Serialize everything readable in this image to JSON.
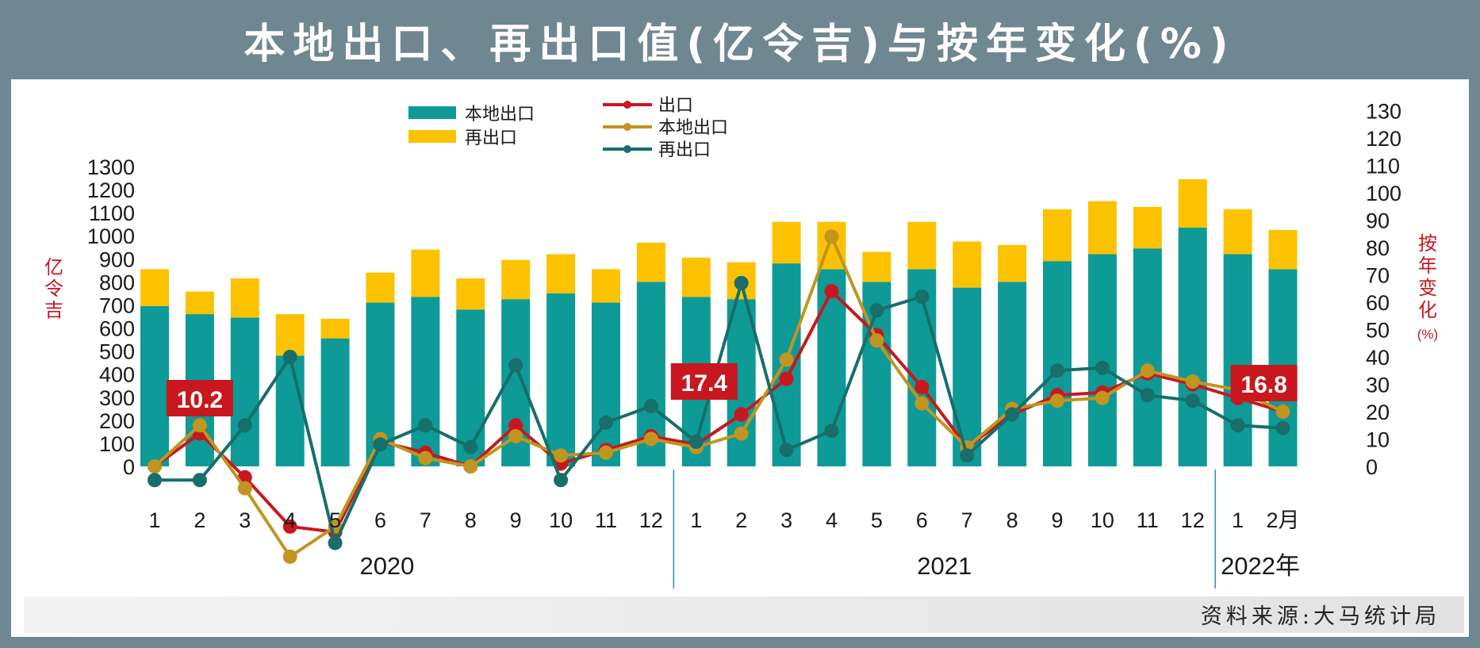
{
  "header": {
    "title": "本地出口、再出口值(亿令吉)与按年变化(%)"
  },
  "footer": {
    "source": "资料来源:大马统计局"
  },
  "chart_data": {
    "type": "bar",
    "left_axis_label": [
      "亿",
      "令",
      "吉"
    ],
    "right_axis_label": [
      "按",
      "年",
      "变",
      "化",
      "(%)"
    ],
    "ylim_left": [
      0,
      1300
    ],
    "ylim_right": [
      0,
      130
    ],
    "left_ticks": [
      "0",
      "100",
      "200",
      "300",
      "400",
      "500",
      "600",
      "700",
      "800",
      "900",
      "1000",
      "1100",
      "1200",
      "1300"
    ],
    "right_ticks": [
      "0",
      "10",
      "20",
      "30",
      "40",
      "50",
      "60",
      "70",
      "80",
      "90",
      "100",
      "110",
      "120",
      "130"
    ],
    "categories": [
      "1",
      "2",
      "3",
      "4",
      "5",
      "6",
      "7",
      "8",
      "9",
      "10",
      "11",
      "12",
      "1",
      "2",
      "3",
      "4",
      "5",
      "6",
      "7",
      "8",
      "9",
      "10",
      "11",
      "12",
      "1",
      "2月"
    ],
    "year_labels": [
      "2020",
      "2021",
      "2022年"
    ],
    "bar_series": [
      {
        "name": "本地出口",
        "color": "#0e9a96",
        "values": [
          695,
          660,
          645,
          480,
          555,
          710,
          735,
          680,
          725,
          750,
          710,
          800,
          735,
          725,
          880,
          855,
          800,
          855,
          775,
          800,
          890,
          920,
          945,
          1035,
          920,
          855
        ]
      },
      {
        "name": "再出口",
        "color": "#fcc200",
        "values": [
          160,
          98,
          170,
          180,
          85,
          130,
          205,
          135,
          170,
          170,
          145,
          170,
          170,
          160,
          180,
          205,
          130,
          205,
          200,
          160,
          225,
          230,
          180,
          210,
          195,
          170
        ]
      }
    ],
    "line_series": [
      {
        "name": "出口",
        "color": "#c8171f",
        "values": [
          0,
          12,
          -4,
          -22,
          -24,
          9,
          5,
          0,
          15,
          1,
          6,
          11,
          8,
          19,
          32,
          64,
          48,
          29,
          7,
          19,
          26,
          27,
          34,
          30,
          25,
          20
        ]
      },
      {
        "name": "本地出口",
        "color": "#c09520",
        "values": [
          0,
          15,
          -8,
          -33,
          -22,
          10,
          3,
          0,
          11,
          4,
          5,
          10,
          7,
          12,
          39,
          84,
          46,
          23,
          7,
          21,
          24,
          25,
          35,
          31,
          28,
          20
        ]
      },
      {
        "name": "再出口",
        "color": "#176e6a",
        "values": [
          -5,
          -5,
          15,
          40,
          -28,
          8,
          15,
          7,
          37,
          -5,
          16,
          22,
          9,
          67,
          6,
          13,
          57,
          62,
          4,
          19,
          35,
          36,
          26,
          24,
          15,
          14
        ]
      }
    ],
    "data_labels": [
      {
        "text": "10.2"
      },
      {
        "text": "17.4"
      },
      {
        "text": "16.8"
      }
    ]
  }
}
